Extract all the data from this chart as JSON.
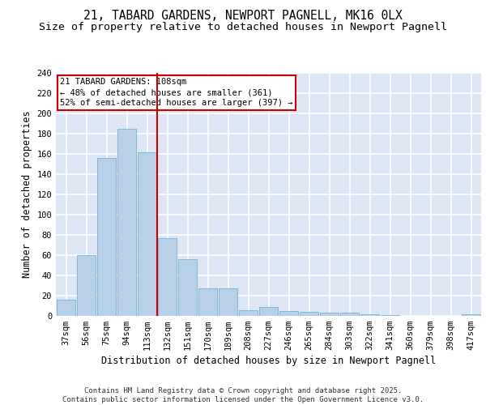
{
  "title_line1": "21, TABARD GARDENS, NEWPORT PAGNELL, MK16 0LX",
  "title_line2": "Size of property relative to detached houses in Newport Pagnell",
  "xlabel": "Distribution of detached houses by size in Newport Pagnell",
  "ylabel": "Number of detached properties",
  "categories": [
    "37sqm",
    "56sqm",
    "75sqm",
    "94sqm",
    "113sqm",
    "132sqm",
    "151sqm",
    "170sqm",
    "189sqm",
    "208sqm",
    "227sqm",
    "246sqm",
    "265sqm",
    "284sqm",
    "303sqm",
    "322sqm",
    "341sqm",
    "360sqm",
    "379sqm",
    "398sqm",
    "417sqm"
  ],
  "values": [
    16,
    60,
    156,
    185,
    162,
    77,
    56,
    27,
    27,
    6,
    9,
    5,
    4,
    3,
    3,
    2,
    1,
    0,
    0,
    0,
    2
  ],
  "bar_color": "#b8d0e8",
  "bar_edge_color": "#7aafd4",
  "background_color": "#dce6f5",
  "grid_color": "#ffffff",
  "annotation_text": "21 TABARD GARDENS: 108sqm\n← 48% of detached houses are smaller (361)\n52% of semi-detached houses are larger (397) →",
  "annotation_box_color": "#ffffff",
  "annotation_box_edge": "#cc0000",
  "vline_x": 4.5,
  "vline_color": "#cc0000",
  "ylim": [
    0,
    240
  ],
  "yticks": [
    0,
    20,
    40,
    60,
    80,
    100,
    120,
    140,
    160,
    180,
    200,
    220,
    240
  ],
  "footer_line1": "Contains HM Land Registry data © Crown copyright and database right 2025.",
  "footer_line2": "Contains public sector information licensed under the Open Government Licence v3.0.",
  "title_fontsize": 10.5,
  "subtitle_fontsize": 9.5,
  "axis_label_fontsize": 8.5,
  "tick_fontsize": 7.5,
  "annotation_fontsize": 7.5,
  "footer_fontsize": 6.5
}
